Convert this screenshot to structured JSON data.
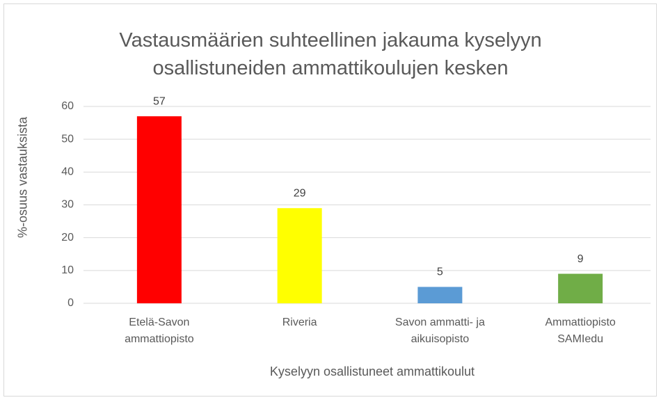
{
  "chart_data": {
    "type": "bar",
    "title": "Vastausmäärien suhteellinen jakauma kyselyyn osallistuneiden ammattikoulujen kesken",
    "x_label": "Kyselyyn osallistuneet ammattikoulut",
    "y_label": "%-osuus vastauksista",
    "categories": [
      "Etelä-Savon ammattiopisto",
      "Riveria",
      "Savon ammatti- ja aikuisopisto",
      "Ammattiopisto SAMIedu"
    ],
    "values": [
      57,
      29,
      5,
      9
    ],
    "colors": [
      "#ff0000",
      "#ffff00",
      "#5b9bd5",
      "#70ad47"
    ],
    "ylim": [
      0,
      60
    ],
    "yticks": [
      0,
      10,
      20,
      30,
      40,
      50,
      60
    ],
    "grid": true
  }
}
